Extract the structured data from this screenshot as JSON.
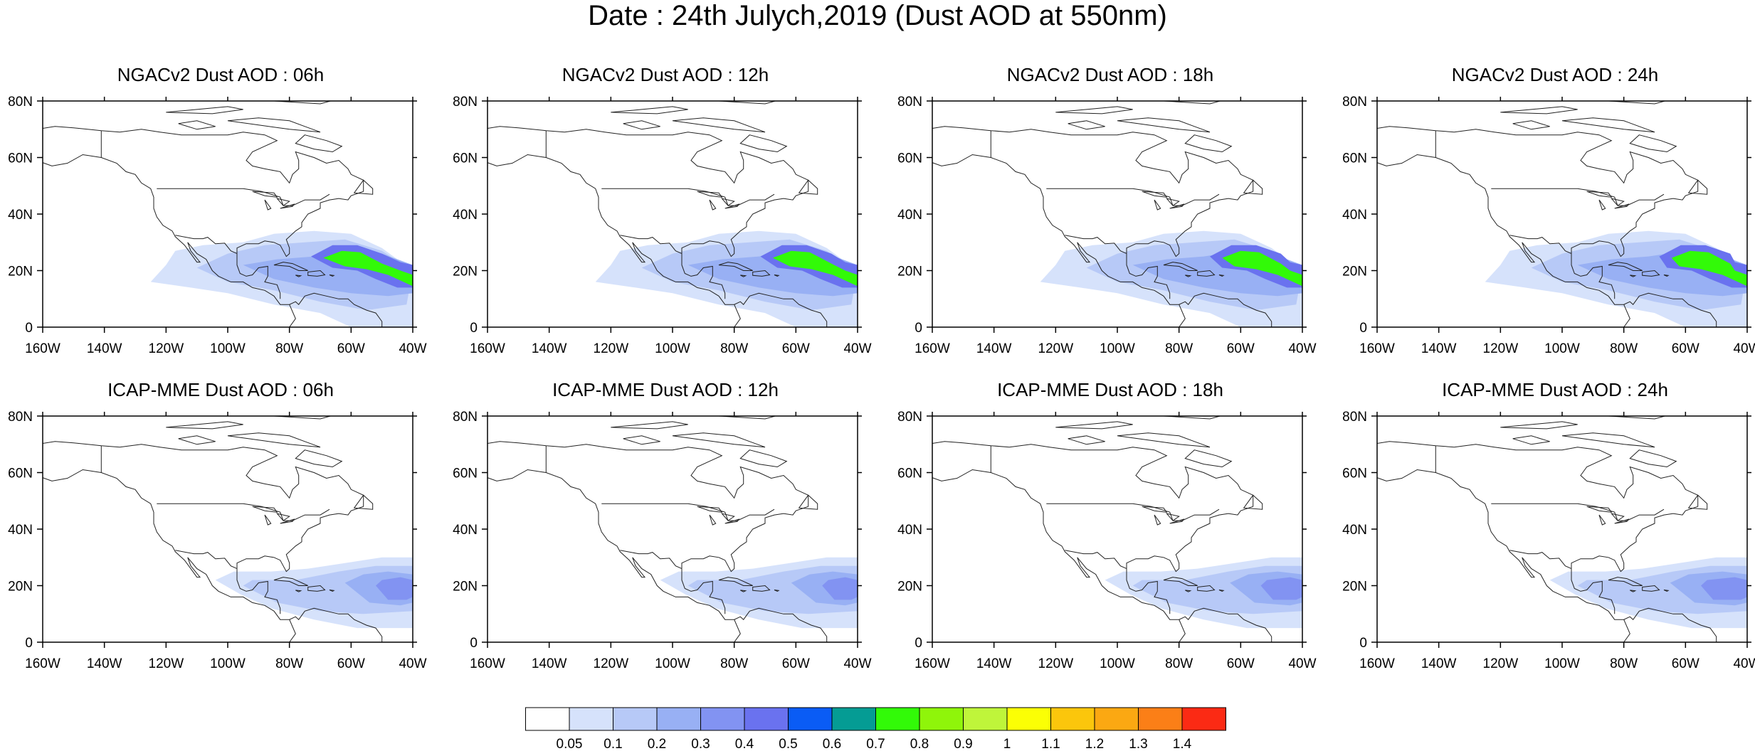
{
  "figure": {
    "title": "Date : 24th Julych,2019 (Dust AOD at 550nm)"
  },
  "map_extent": {
    "lon_min": -160,
    "lon_max": -40,
    "lat_min": 0,
    "lat_max": 80
  },
  "axes": {
    "lon_ticks": [
      {
        "value": -160,
        "label": "160W"
      },
      {
        "value": -140,
        "label": "140W"
      },
      {
        "value": -120,
        "label": "120W"
      },
      {
        "value": -100,
        "label": "100W"
      },
      {
        "value": -80,
        "label": "80W"
      },
      {
        "value": -60,
        "label": "60W"
      },
      {
        "value": -40,
        "label": "40W"
      }
    ],
    "lat_ticks": [
      {
        "value": 0,
        "label": "0"
      },
      {
        "value": 20,
        "label": "20N"
      },
      {
        "value": 40,
        "label": "40N"
      },
      {
        "value": 60,
        "label": "60N"
      },
      {
        "value": 80,
        "label": "80N"
      }
    ]
  },
  "colorbar": {
    "colors": [
      "#ffffff",
      "#d6e2fb",
      "#b7c9f7",
      "#98b0f4",
      "#8293f2",
      "#6a72ef",
      "#0a5cf5",
      "#059c94",
      "#32fa08",
      "#8ff50a",
      "#bff53a",
      "#fbff05",
      "#fbc60c",
      "#fba812",
      "#fb7f17",
      "#fb2a14"
    ],
    "labels": [
      "0.05",
      "0.1",
      "0.2",
      "0.3",
      "0.4",
      "0.5",
      "0.6",
      "0.7",
      "0.8",
      "0.9",
      "1",
      "1.1",
      "1.2",
      "1.3",
      "1.4"
    ]
  },
  "panels": [
    {
      "title": "NGACv2 Dust AOD : 06h",
      "model": "ngac",
      "core_shift": 0
    },
    {
      "title": "NGACv2 Dust AOD : 12h",
      "model": "ngac",
      "core_shift": 1.5
    },
    {
      "title": "NGACv2 Dust AOD : 18h",
      "model": "ngac",
      "core_shift": 3
    },
    {
      "title": "NGACv2 Dust AOD : 24h",
      "model": "ngac",
      "core_shift": 4.5
    },
    {
      "title": "ICAP-MME Dust AOD : 06h",
      "model": "icap",
      "core_shift": 0
    },
    {
      "title": "ICAP-MME Dust AOD : 12h",
      "model": "icap",
      "core_shift": 0.5
    },
    {
      "title": "ICAP-MME Dust AOD : 18h",
      "model": "icap",
      "core_shift": -1.5
    },
    {
      "title": "ICAP-MME Dust AOD : 24h",
      "model": "icap",
      "core_shift": -3
    }
  ]
}
